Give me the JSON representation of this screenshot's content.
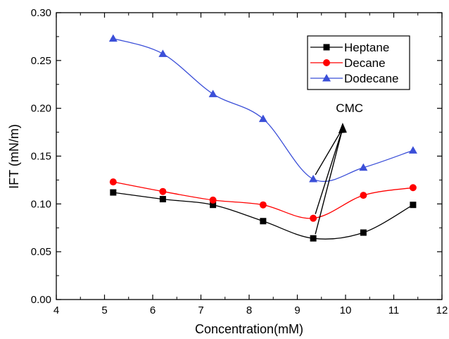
{
  "chart_data": {
    "type": "line",
    "xlabel": "Concentration(mM)",
    "ylabel": "IFT (mN/m)",
    "xlim": [
      4,
      12
    ],
    "ylim": [
      0.0,
      0.3
    ],
    "xticks": [
      "4",
      "5",
      "6",
      "7",
      "8",
      "9",
      "10",
      "11",
      "12"
    ],
    "yticks": [
      "0.00",
      "0.05",
      "0.10",
      "0.15",
      "0.20",
      "0.25",
      "0.30"
    ],
    "grid": false,
    "legend_position": "top-right",
    "series": [
      {
        "name": "Heptane",
        "marker": "square",
        "color": "#000000",
        "x": [
          5.18,
          6.21,
          7.25,
          8.29,
          9.33,
          10.37,
          11.4
        ],
        "y": [
          0.112,
          0.105,
          0.099,
          0.082,
          0.064,
          0.07,
          0.099
        ]
      },
      {
        "name": "Decane",
        "marker": "circle",
        "color": "#ff0000",
        "x": [
          5.18,
          6.21,
          7.25,
          8.29,
          9.33,
          10.37,
          11.4
        ],
        "y": [
          0.123,
          0.113,
          0.104,
          0.099,
          0.085,
          0.109,
          0.117
        ]
      },
      {
        "name": "Dodecane",
        "marker": "triangle",
        "color": "#3b4fd8",
        "x": [
          5.18,
          6.21,
          7.25,
          8.29,
          9.33,
          10.37,
          11.4
        ],
        "y": [
          0.273,
          0.257,
          0.215,
          0.189,
          0.126,
          0.138,
          0.156
        ]
      }
    ],
    "annotation": {
      "text": "CMC",
      "label_x": 9.8,
      "label_y": 0.196,
      "arrow_tip_x": 9.94,
      "arrow_tip_y": 0.182,
      "arrow_targets": [
        {
          "x": 9.33,
          "y": 0.064
        },
        {
          "x": 9.33,
          "y": 0.085
        },
        {
          "x": 9.33,
          "y": 0.126
        }
      ]
    }
  }
}
